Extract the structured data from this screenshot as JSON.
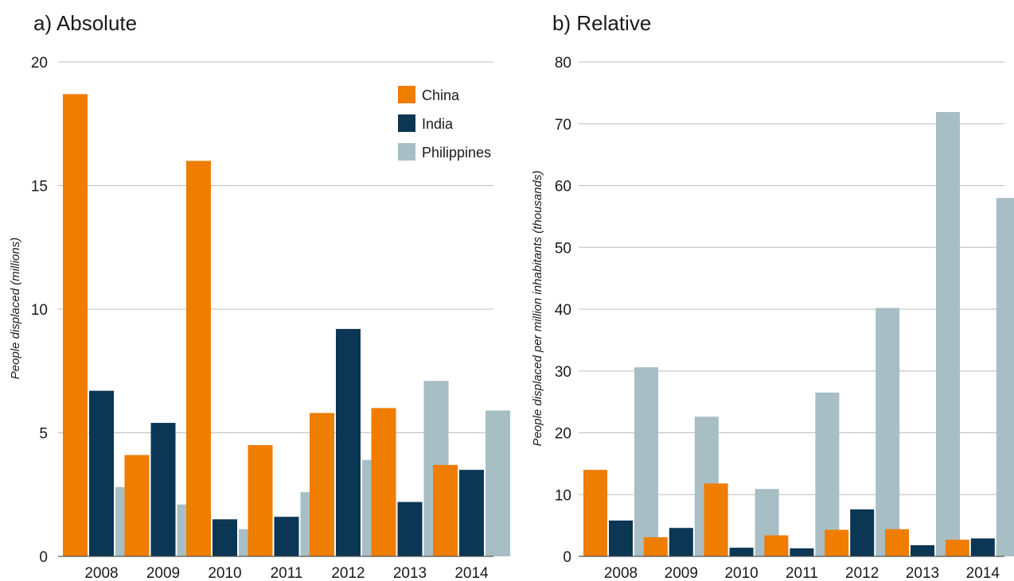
{
  "panels": {
    "a": {
      "title": "a) Absolute"
    },
    "b": {
      "title": "b) Relative"
    }
  },
  "colors": {
    "China": "#ee7d00",
    "India": "#0b3654",
    "Philippines": "#a7bec4",
    "grid": "#bdbdbd",
    "axis": "#555555"
  },
  "chart_data": [
    {
      "type": "bar",
      "title": "a) Absolute",
      "xlabel": "",
      "ylabel": "People displaced (millions)",
      "categories": [
        "2008",
        "2009",
        "2010",
        "2011",
        "2012",
        "2013",
        "2014"
      ],
      "ylim": [
        0,
        20
      ],
      "yticks": [
        0,
        5,
        10,
        15,
        20
      ],
      "legend": "top-right",
      "series": [
        {
          "name": "China",
          "values": [
            18.7,
            4.1,
            16.0,
            4.5,
            5.8,
            6.0,
            3.7
          ]
        },
        {
          "name": "India",
          "values": [
            6.7,
            5.4,
            1.5,
            1.6,
            9.2,
            2.2,
            3.5
          ]
        },
        {
          "name": "Philippines",
          "values": [
            2.8,
            2.1,
            1.1,
            2.6,
            3.9,
            7.1,
            5.9
          ]
        }
      ]
    },
    {
      "type": "bar",
      "title": "b) Relative",
      "xlabel": "",
      "ylabel": "People displaced per million inhabitants (thousands)",
      "categories": [
        "2008",
        "2009",
        "2010",
        "2011",
        "2012",
        "2013",
        "2014"
      ],
      "ylim": [
        0,
        80
      ],
      "yticks": [
        0,
        10,
        20,
        30,
        40,
        50,
        60,
        70,
        80
      ],
      "legend": "none",
      "series": [
        {
          "name": "China",
          "values": [
            14.0,
            3.1,
            11.8,
            3.4,
            4.3,
            4.4,
            2.7
          ]
        },
        {
          "name": "India",
          "values": [
            5.8,
            4.6,
            1.4,
            1.3,
            7.6,
            1.8,
            2.9
          ]
        },
        {
          "name": "Philippines",
          "values": [
            30.6,
            22.6,
            10.9,
            26.5,
            40.2,
            71.9,
            58.0
          ]
        }
      ]
    }
  ]
}
